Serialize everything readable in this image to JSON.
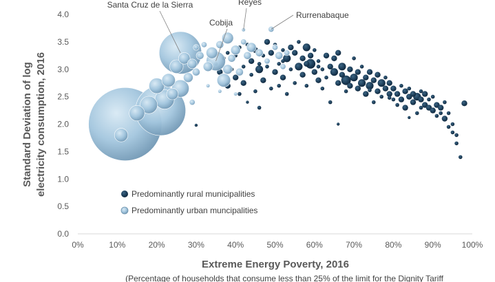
{
  "chart_data": {
    "type": "scatter",
    "subtype": "bubble",
    "xlabel": "Extreme Energy Poverty, 2016",
    "xsublabel": "(Percentage of households that consume less than 25% of the limit for the Dignity Tariff",
    "ylabel_line1": "Standard Deviation of log",
    "ylabel_line2": "electricity consumption, 2016",
    "x_ticks": [
      "0%",
      "10%",
      "20%",
      "30%",
      "40%",
      "50%",
      "60%",
      "70%",
      "80%",
      "90%",
      "100%"
    ],
    "y_ticks": [
      "0.0",
      "0.5",
      "1.0",
      "1.5",
      "2.0",
      "2.5",
      "3.0",
      "3.5",
      "4.0"
    ],
    "xlim": [
      0,
      1.0
    ],
    "ylim": [
      0,
      4.0
    ],
    "grid": false,
    "legend_placement": "bottom-left",
    "colors": {
      "rural": "#17344d",
      "urban": "#9dc3dc",
      "urban_edge": "#6f93ad",
      "axis": "#d9d9d9"
    },
    "series": [
      {
        "name": "Predominantly rural municipalities",
        "key": "rural",
        "points": [
          [
            0.3,
            1.98,
            1
          ],
          [
            0.35,
            3.1,
            2
          ],
          [
            0.36,
            2.95,
            3
          ],
          [
            0.37,
            3.2,
            2
          ],
          [
            0.38,
            2.7,
            3
          ],
          [
            0.38,
            3.3,
            2
          ],
          [
            0.39,
            3.0,
            2
          ],
          [
            0.4,
            2.85,
            3
          ],
          [
            0.4,
            3.25,
            2
          ],
          [
            0.41,
            2.55,
            2
          ],
          [
            0.41,
            3.4,
            2
          ],
          [
            0.42,
            3.05,
            2
          ],
          [
            0.42,
            2.75,
            3
          ],
          [
            0.43,
            3.45,
            2
          ],
          [
            0.43,
            2.4,
            1
          ],
          [
            0.44,
            3.15,
            3
          ],
          [
            0.44,
            2.9,
            2
          ],
          [
            0.45,
            3.35,
            3
          ],
          [
            0.45,
            2.6,
            2
          ],
          [
            0.46,
            2.3,
            2
          ],
          [
            0.46,
            3.0,
            4
          ],
          [
            0.47,
            3.25,
            2
          ],
          [
            0.47,
            2.8,
            3
          ],
          [
            0.48,
            3.5,
            3
          ],
          [
            0.48,
            3.05,
            2
          ],
          [
            0.49,
            2.65,
            2
          ],
          [
            0.49,
            3.3,
            3
          ],
          [
            0.5,
            2.95,
            3
          ],
          [
            0.5,
            3.45,
            2
          ],
          [
            0.51,
            3.1,
            2
          ],
          [
            0.51,
            2.7,
            2
          ],
          [
            0.52,
            3.35,
            2
          ],
          [
            0.52,
            2.85,
            3
          ],
          [
            0.53,
            3.2,
            4
          ],
          [
            0.53,
            2.55,
            2
          ],
          [
            0.54,
            3.4,
            3
          ],
          [
            0.54,
            3.0,
            2
          ],
          [
            0.55,
            2.75,
            2
          ],
          [
            0.55,
            3.3,
            3
          ],
          [
            0.56,
            3.05,
            4
          ],
          [
            0.56,
            3.5,
            2
          ],
          [
            0.57,
            2.9,
            3
          ],
          [
            0.57,
            3.2,
            3
          ],
          [
            0.58,
            3.4,
            4
          ],
          [
            0.58,
            2.7,
            2
          ],
          [
            0.59,
            3.1,
            5
          ],
          [
            0.59,
            3.25,
            3
          ],
          [
            0.6,
            2.95,
            3
          ],
          [
            0.6,
            3.35,
            2
          ],
          [
            0.61,
            2.8,
            3
          ],
          [
            0.61,
            3.15,
            2
          ],
          [
            0.62,
            3.0,
            2
          ],
          [
            0.62,
            2.65,
            2
          ],
          [
            0.63,
            3.25,
            3
          ],
          [
            0.63,
            2.85,
            2
          ],
          [
            0.64,
            3.05,
            3
          ],
          [
            0.64,
            2.4,
            2
          ],
          [
            0.65,
            2.95,
            4
          ],
          [
            0.65,
            3.2,
            3
          ],
          [
            0.66,
            2.75,
            3
          ],
          [
            0.66,
            3.3,
            3
          ],
          [
            0.67,
            2.9,
            3
          ],
          [
            0.67,
            3.05,
            4
          ],
          [
            0.68,
            2.8,
            5
          ],
          [
            0.68,
            2.6,
            2
          ],
          [
            0.69,
            3.0,
            3
          ],
          [
            0.69,
            2.7,
            3
          ],
          [
            0.7,
            2.85,
            4
          ],
          [
            0.7,
            3.2,
            2
          ],
          [
            0.71,
            2.65,
            3
          ],
          [
            0.71,
            2.95,
            3
          ],
          [
            0.72,
            2.75,
            4
          ],
          [
            0.72,
            3.05,
            2
          ],
          [
            0.73,
            2.85,
            3
          ],
          [
            0.73,
            2.55,
            3
          ],
          [
            0.74,
            2.95,
            3
          ],
          [
            0.74,
            2.7,
            4
          ],
          [
            0.75,
            2.8,
            3
          ],
          [
            0.75,
            2.4,
            2
          ],
          [
            0.76,
            2.6,
            3
          ],
          [
            0.76,
            2.9,
            3
          ],
          [
            0.77,
            2.75,
            4
          ],
          [
            0.77,
            2.5,
            2
          ],
          [
            0.78,
            2.65,
            3
          ],
          [
            0.78,
            2.85,
            2
          ],
          [
            0.79,
            2.55,
            3
          ],
          [
            0.79,
            2.75,
            3
          ],
          [
            0.8,
            2.45,
            2
          ],
          [
            0.8,
            2.65,
            3
          ],
          [
            0.81,
            2.55,
            3
          ],
          [
            0.81,
            2.35,
            2
          ],
          [
            0.82,
            2.7,
            2
          ],
          [
            0.82,
            2.45,
            3
          ],
          [
            0.83,
            2.6,
            3
          ],
          [
            0.83,
            2.3,
            3
          ],
          [
            0.84,
            2.5,
            3
          ],
          [
            0.84,
            2.65,
            2
          ],
          [
            0.85,
            2.4,
            3
          ],
          [
            0.85,
            2.55,
            3
          ],
          [
            0.86,
            2.5,
            4
          ],
          [
            0.86,
            2.2,
            2
          ],
          [
            0.87,
            2.45,
            3
          ],
          [
            0.87,
            2.6,
            2
          ],
          [
            0.88,
            2.35,
            3
          ],
          [
            0.88,
            2.55,
            3
          ],
          [
            0.89,
            2.3,
            3
          ],
          [
            0.89,
            2.45,
            2
          ],
          [
            0.9,
            2.25,
            3
          ],
          [
            0.9,
            2.5,
            2
          ],
          [
            0.91,
            2.35,
            3
          ],
          [
            0.91,
            2.15,
            2
          ],
          [
            0.92,
            2.3,
            3
          ],
          [
            0.92,
            2.2,
            2
          ],
          [
            0.93,
            2.1,
            3
          ],
          [
            0.93,
            2.4,
            2
          ],
          [
            0.94,
            2.2,
            2
          ],
          [
            0.94,
            1.95,
            2
          ],
          [
            0.95,
            2.0,
            2
          ],
          [
            0.95,
            1.85,
            2
          ],
          [
            0.96,
            1.8,
            2
          ],
          [
            0.96,
            1.65,
            2
          ],
          [
            0.97,
            1.4,
            2
          ],
          [
            0.98,
            2.38,
            3
          ],
          [
            0.66,
            2.0,
            1
          ],
          [
            0.84,
            2.12,
            1
          ],
          [
            0.61,
            3.05,
            2
          ],
          [
            0.58,
            3.1,
            3
          ],
          [
            0.52,
            3.15,
            2
          ],
          [
            0.46,
            3.1,
            2
          ],
          [
            0.74,
            2.62,
            2
          ],
          [
            0.79,
            2.48,
            2
          ],
          [
            0.87,
            2.3,
            2
          ]
        ]
      },
      {
        "name": "Predominantly urban muncipalities",
        "key": "urban",
        "points": [
          [
            0.12,
            2.0,
            38
          ],
          [
            0.21,
            2.25,
            26
          ],
          [
            0.26,
            3.3,
            22
          ],
          [
            0.15,
            2.2,
            8
          ],
          [
            0.11,
            1.8,
            7
          ],
          [
            0.18,
            2.35,
            9
          ],
          [
            0.2,
            2.7,
            8
          ],
          [
            0.22,
            2.45,
            10
          ],
          [
            0.23,
            2.8,
            7
          ],
          [
            0.24,
            2.55,
            6
          ],
          [
            0.25,
            3.05,
            7
          ],
          [
            0.26,
            2.65,
            9
          ],
          [
            0.27,
            3.2,
            6
          ],
          [
            0.28,
            2.85,
            5
          ],
          [
            0.29,
            3.1,
            5
          ],
          [
            0.3,
            2.95,
            4
          ],
          [
            0.3,
            3.4,
            3
          ],
          [
            0.31,
            3.25,
            4
          ],
          [
            0.32,
            3.45,
            3
          ],
          [
            0.33,
            3.05,
            5
          ],
          [
            0.34,
            3.3,
            6
          ],
          [
            0.35,
            3.15,
            10
          ],
          [
            0.36,
            3.45,
            4
          ],
          [
            0.37,
            2.8,
            7
          ],
          [
            0.38,
            3.0,
            5
          ],
          [
            0.38,
            3.57,
            6
          ],
          [
            0.39,
            3.2,
            4
          ],
          [
            0.4,
            3.35,
            5
          ],
          [
            0.41,
            2.95,
            4
          ],
          [
            0.42,
            3.5,
            3
          ],
          [
            0.43,
            3.25,
            4
          ],
          [
            0.44,
            3.4,
            5
          ],
          [
            0.46,
            3.3,
            4
          ],
          [
            0.48,
            3.15,
            3
          ],
          [
            0.5,
            3.4,
            3
          ],
          [
            0.51,
            3.25,
            4
          ],
          [
            0.52,
            3.05,
            3
          ],
          [
            0.53,
            3.3,
            3
          ],
          [
            0.42,
            3.72,
            2
          ],
          [
            0.49,
            3.73,
            3
          ],
          [
            0.33,
            2.7,
            2
          ],
          [
            0.29,
            2.4,
            3
          ],
          [
            0.36,
            2.6,
            2
          ],
          [
            0.4,
            2.55,
            2
          ]
        ]
      }
    ],
    "annotations": [
      {
        "text": "Santa Cruz de la Sierra",
        "target": [
          0.26,
          3.3
        ]
      },
      {
        "text": "Cobija",
        "target": [
          0.35,
          3.15
        ]
      },
      {
        "text": "Reyes",
        "target": [
          0.42,
          3.72
        ]
      },
      {
        "text": "Rurrenabaque",
        "target": [
          0.49,
          3.73
        ]
      }
    ]
  }
}
